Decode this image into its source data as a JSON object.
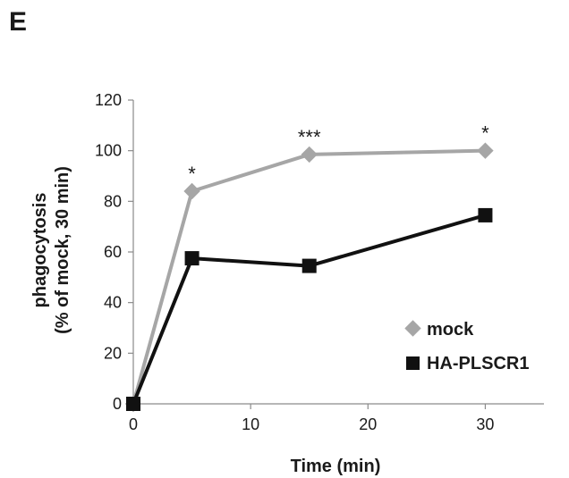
{
  "panel_label": "E",
  "chart_data": {
    "type": "line",
    "xlabel": "Time (min)",
    "ylabel_line1": "phagocytosis",
    "ylabel_line2": "(% of mock, 30 min)",
    "xlim": [
      0,
      35
    ],
    "ylim": [
      0,
      120
    ],
    "xticks": [
      0,
      10,
      20,
      30
    ],
    "yticks": [
      0,
      20,
      40,
      60,
      80,
      100,
      120
    ],
    "legend_position": "right",
    "series": [
      {
        "name": "mock",
        "color": "#a6a6a6",
        "marker": "diamond",
        "x": [
          0,
          5,
          15,
          30
        ],
        "y": [
          0,
          84,
          98.5,
          100
        ]
      },
      {
        "name": "HA-PLSCR1",
        "color": "#111111",
        "marker": "square",
        "x": [
          0,
          5,
          15,
          30
        ],
        "y": [
          0,
          57.5,
          54.5,
          74.5
        ]
      }
    ],
    "annotations": [
      {
        "text": "*",
        "x": 5,
        "y": 84
      },
      {
        "text": "***",
        "x": 15,
        "y": 98.5
      },
      {
        "text": "*",
        "x": 30,
        "y": 100
      }
    ]
  }
}
